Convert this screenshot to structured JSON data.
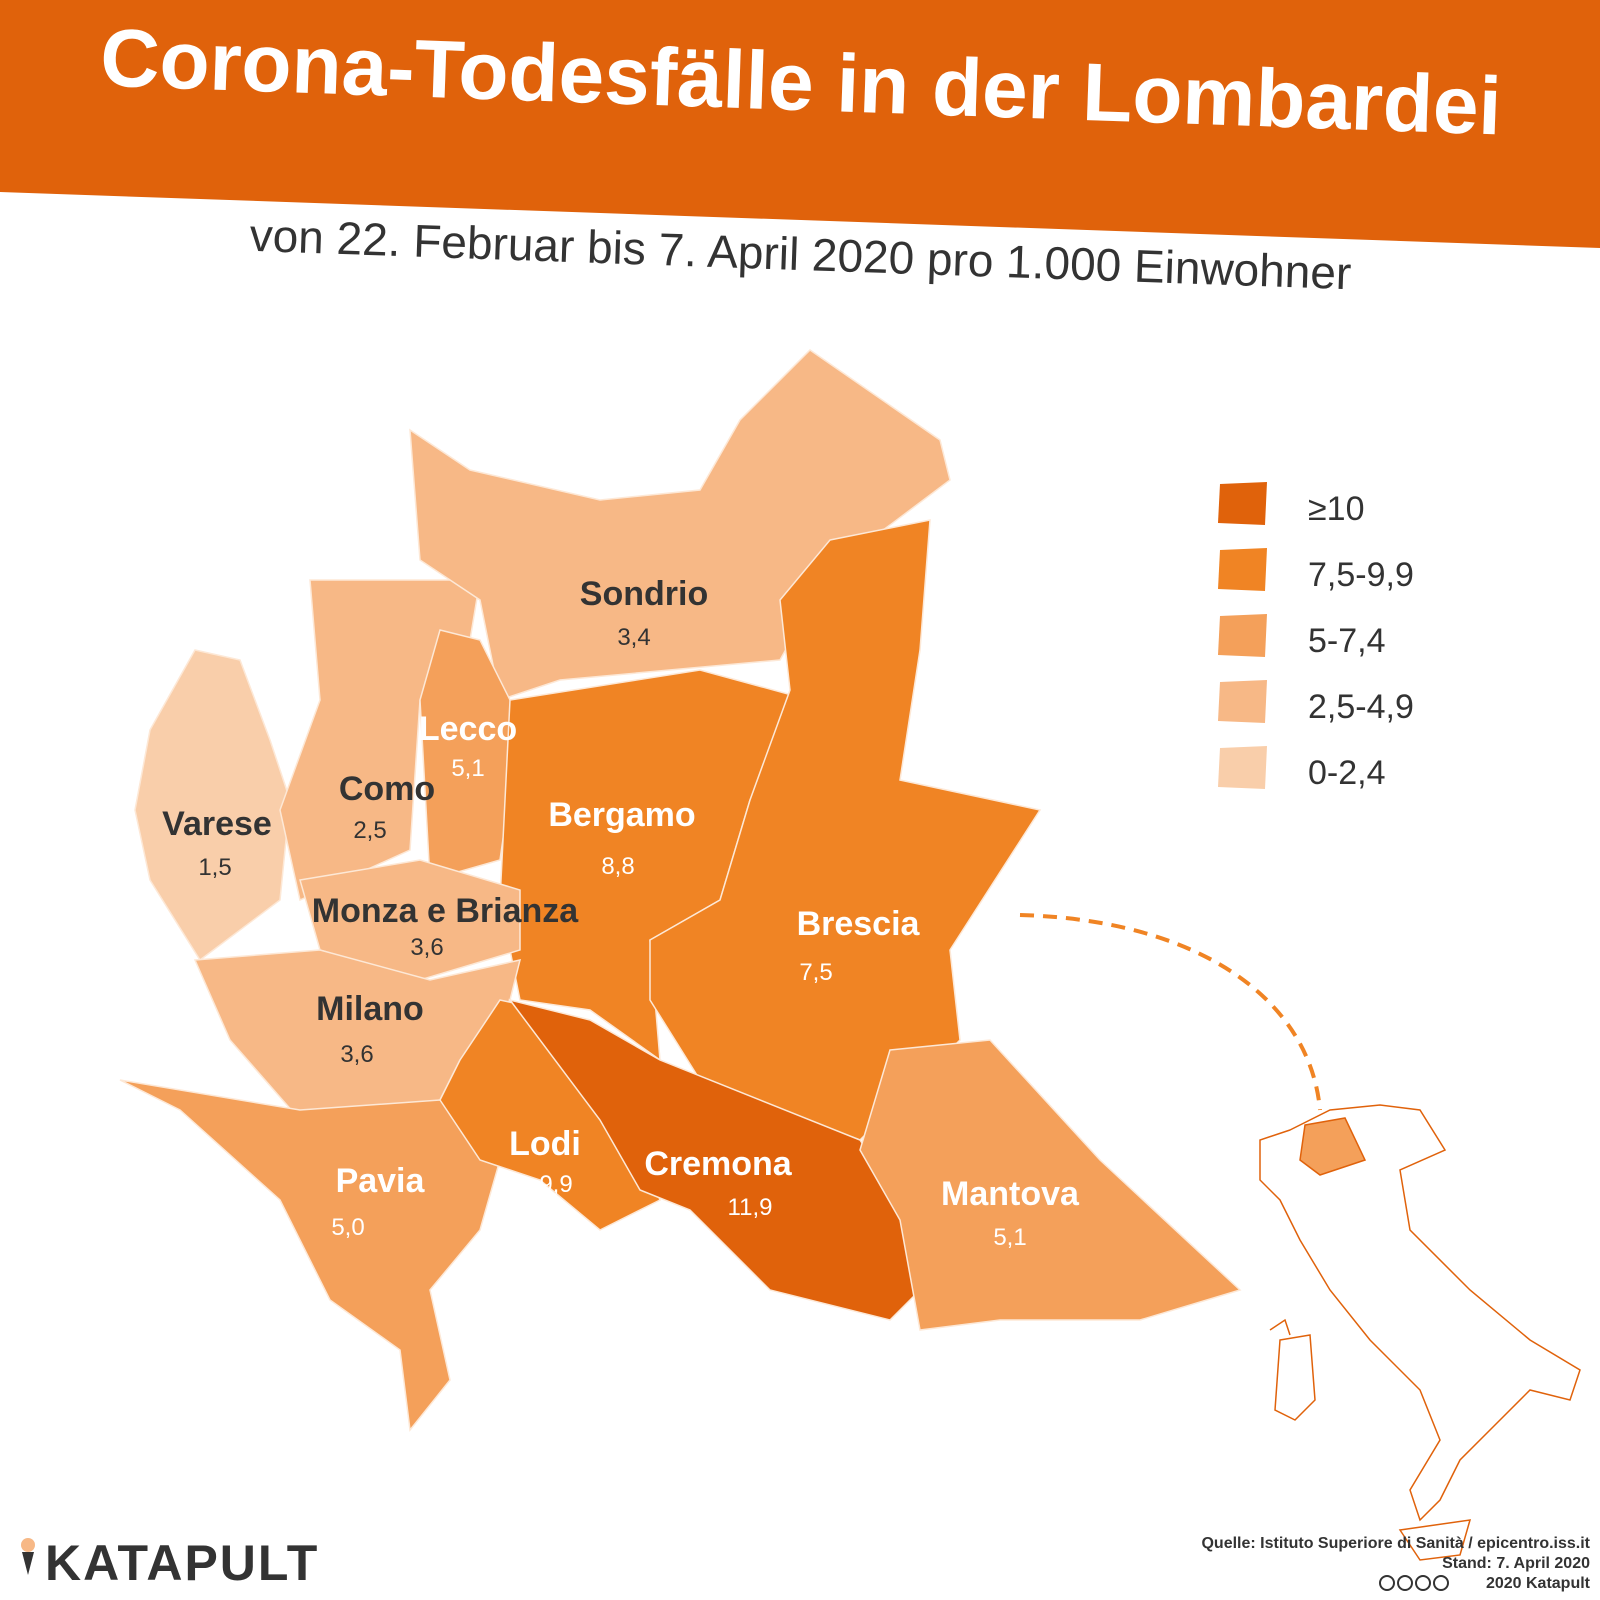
{
  "header": {
    "title": "Corona-Todesfälle in der Lombardei",
    "subtitle": "von 22. Februar bis 7. April 2020 pro 1.000 Einwohner"
  },
  "regions": [
    {
      "name": "Sondrio",
      "value": "3,4"
    },
    {
      "name": "Lecco",
      "value": "5,1"
    },
    {
      "name": "Como",
      "value": "2,5"
    },
    {
      "name": "Varese",
      "value": "1,5"
    },
    {
      "name": "Bergamo",
      "value": "8,8"
    },
    {
      "name": "Brescia",
      "value": "7,5"
    },
    {
      "name": "Monza e Brianza",
      "value": "3,6"
    },
    {
      "name": "Milano",
      "value": "3,6"
    },
    {
      "name": "Lodi",
      "value": "9,9"
    },
    {
      "name": "Cremona",
      "value": "11,9"
    },
    {
      "name": "Pavia",
      "value": "5,0"
    },
    {
      "name": "Mantova",
      "value": "5,1"
    }
  ],
  "legend": [
    "≥10",
    "7,5-9,9",
    "5-7,4",
    "2,5-4,9",
    "0-2,4"
  ],
  "footer": {
    "brand": "KATAPULT",
    "source": "Quelle: Istituto Superiore di Sanità / epicentro.iss.it",
    "date": "Stand: 7. April 2020",
    "copyright": "2020 Katapult"
  }
}
